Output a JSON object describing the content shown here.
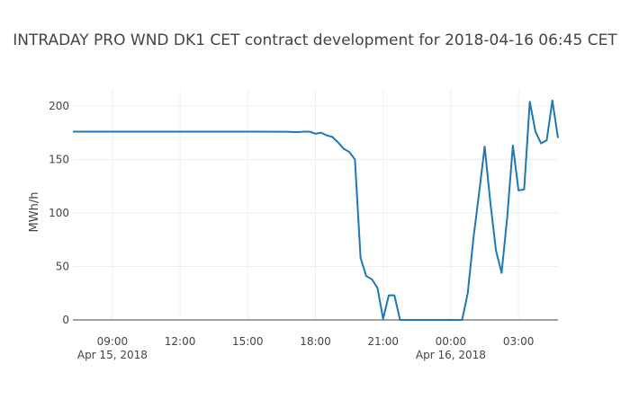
{
  "chart_data": {
    "type": "line",
    "title": "INTRADAY PRO WND DK1 CET contract development for 2018-04-16 06:45 CET",
    "xlabel": "",
    "ylabel": "MWh/h",
    "xlim": [
      "2018-04-15 07:15",
      "2018-04-16 04:45"
    ],
    "ylim": [
      0,
      215
    ],
    "grid": true,
    "legend": "none",
    "line_color": "#1f77b4",
    "x_tick_labels": [
      {
        "x": "2018-04-15 09:00",
        "label": "09:00",
        "sublabel": "Apr 15, 2018"
      },
      {
        "x": "2018-04-15 12:00",
        "label": "12:00",
        "sublabel": ""
      },
      {
        "x": "2018-04-15 15:00",
        "label": "15:00",
        "sublabel": ""
      },
      {
        "x": "2018-04-15 18:00",
        "label": "18:00",
        "sublabel": ""
      },
      {
        "x": "2018-04-15 21:00",
        "label": "21:00",
        "sublabel": ""
      },
      {
        "x": "2018-04-16 00:00",
        "label": "00:00",
        "sublabel": "Apr 16, 2018"
      },
      {
        "x": "2018-04-16 03:00",
        "label": "03:00",
        "sublabel": ""
      }
    ],
    "y_ticks": [
      0,
      50,
      100,
      150,
      200
    ],
    "series": [
      {
        "name": "",
        "x": [
          "2018-04-15 07:15",
          "2018-04-15 09:00",
          "2018-04-15 12:00",
          "2018-04-15 15:00",
          "2018-04-15 16:45",
          "2018-04-15 17:00",
          "2018-04-15 17:15",
          "2018-04-15 17:30",
          "2018-04-15 17:45",
          "2018-04-15 18:00",
          "2018-04-15 18:15",
          "2018-04-15 18:30",
          "2018-04-15 18:45",
          "2018-04-15 19:00",
          "2018-04-15 19:15",
          "2018-04-15 19:30",
          "2018-04-15 19:45",
          "2018-04-15 20:00",
          "2018-04-15 20:15",
          "2018-04-15 20:30",
          "2018-04-15 20:45",
          "2018-04-15 21:00",
          "2018-04-15 21:15",
          "2018-04-15 21:30",
          "2018-04-15 21:45",
          "2018-04-15 22:00",
          "2018-04-16 00:15",
          "2018-04-16 00:30",
          "2018-04-16 00:45",
          "2018-04-16 01:00",
          "2018-04-16 01:15",
          "2018-04-16 01:30",
          "2018-04-16 01:45",
          "2018-04-16 02:00",
          "2018-04-16 02:15",
          "2018-04-16 02:30",
          "2018-04-16 02:45",
          "2018-04-16 03:00",
          "2018-04-16 03:15",
          "2018-04-16 03:30",
          "2018-04-16 03:45",
          "2018-04-16 04:00",
          "2018-04-16 04:15",
          "2018-04-16 04:30",
          "2018-04-16 04:45"
        ],
        "y": [
          176,
          176,
          176,
          176,
          175.8,
          175.6,
          175.5,
          176,
          176,
          174,
          175,
          172.5,
          171,
          166,
          160,
          157,
          150,
          58,
          41,
          38,
          30,
          1,
          23,
          23,
          0,
          0,
          0,
          0,
          25,
          76,
          118,
          162,
          110,
          65,
          44,
          96,
          163,
          121,
          122,
          204,
          176,
          165,
          168,
          205,
          170
        ]
      }
    ]
  }
}
